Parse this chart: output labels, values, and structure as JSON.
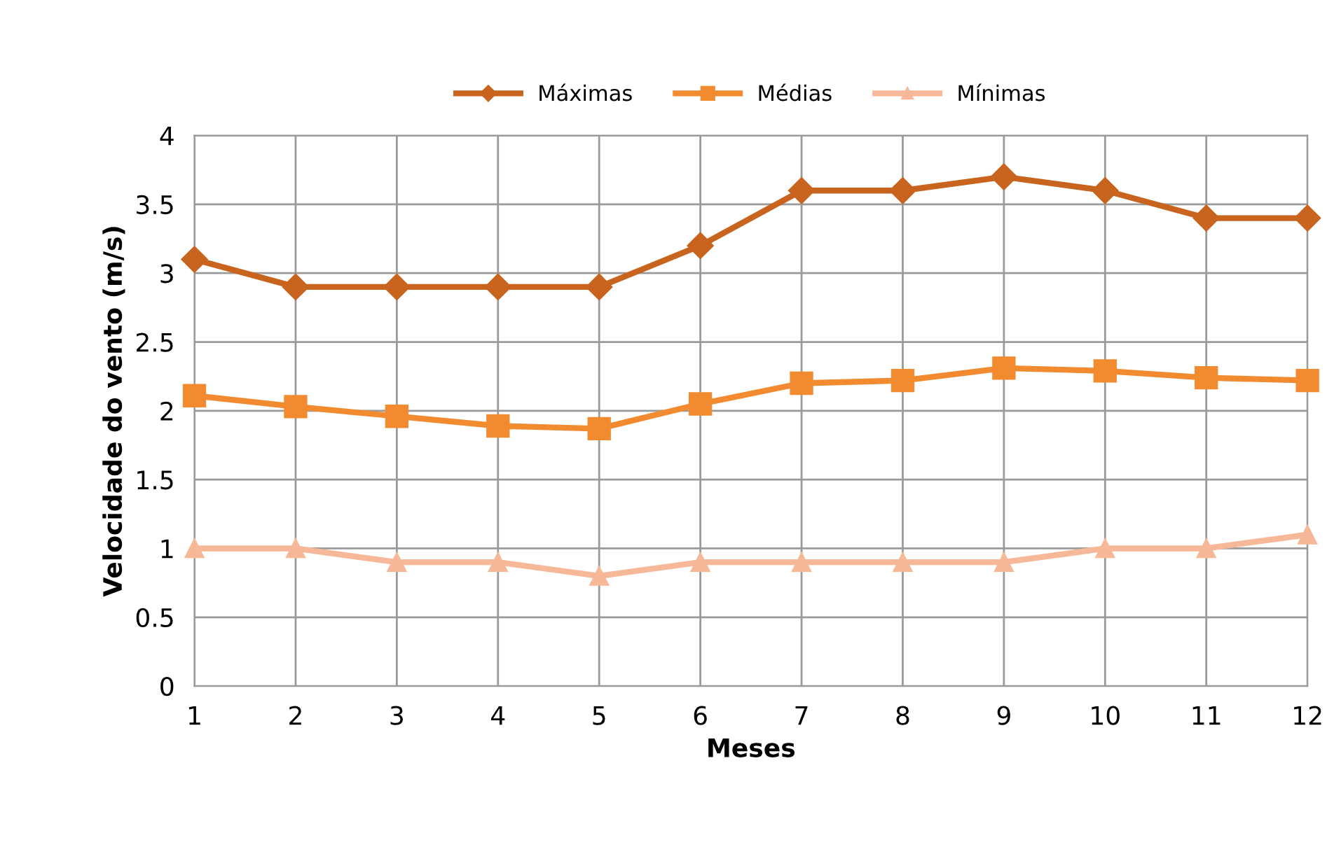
{
  "chart_data": {
    "type": "line",
    "xlabel": "Meses",
    "ylabel": "Velocidade do vento (m/s)",
    "categories": [
      "1",
      "2",
      "3",
      "4",
      "5",
      "6",
      "7",
      "8",
      "9",
      "10",
      "11",
      "12"
    ],
    "series": [
      {
        "name": "Máximas",
        "color": "#c8641e",
        "marker": "diamond",
        "values": [
          3.1,
          2.9,
          2.9,
          2.9,
          2.9,
          3.2,
          3.6,
          3.6,
          3.7,
          3.6,
          3.4,
          3.4
        ]
      },
      {
        "name": "Médias",
        "color": "#f28a30",
        "marker": "square",
        "values": [
          2.11,
          2.03,
          1.96,
          1.89,
          1.87,
          2.05,
          2.2,
          2.22,
          2.31,
          2.29,
          2.24,
          2.22
        ]
      },
      {
        "name": "Mínimas",
        "color": "#f6b898",
        "marker": "triangle",
        "values": [
          1.0,
          1.0,
          0.9,
          0.9,
          0.8,
          0.9,
          0.9,
          0.9,
          0.9,
          1.0,
          1.0,
          1.1
        ]
      }
    ],
    "ylim": [
      0,
      4
    ],
    "yticks": [
      0,
      0.5,
      1,
      1.5,
      2,
      2.5,
      3,
      3.5,
      4
    ],
    "grid": true,
    "legend": "top"
  }
}
